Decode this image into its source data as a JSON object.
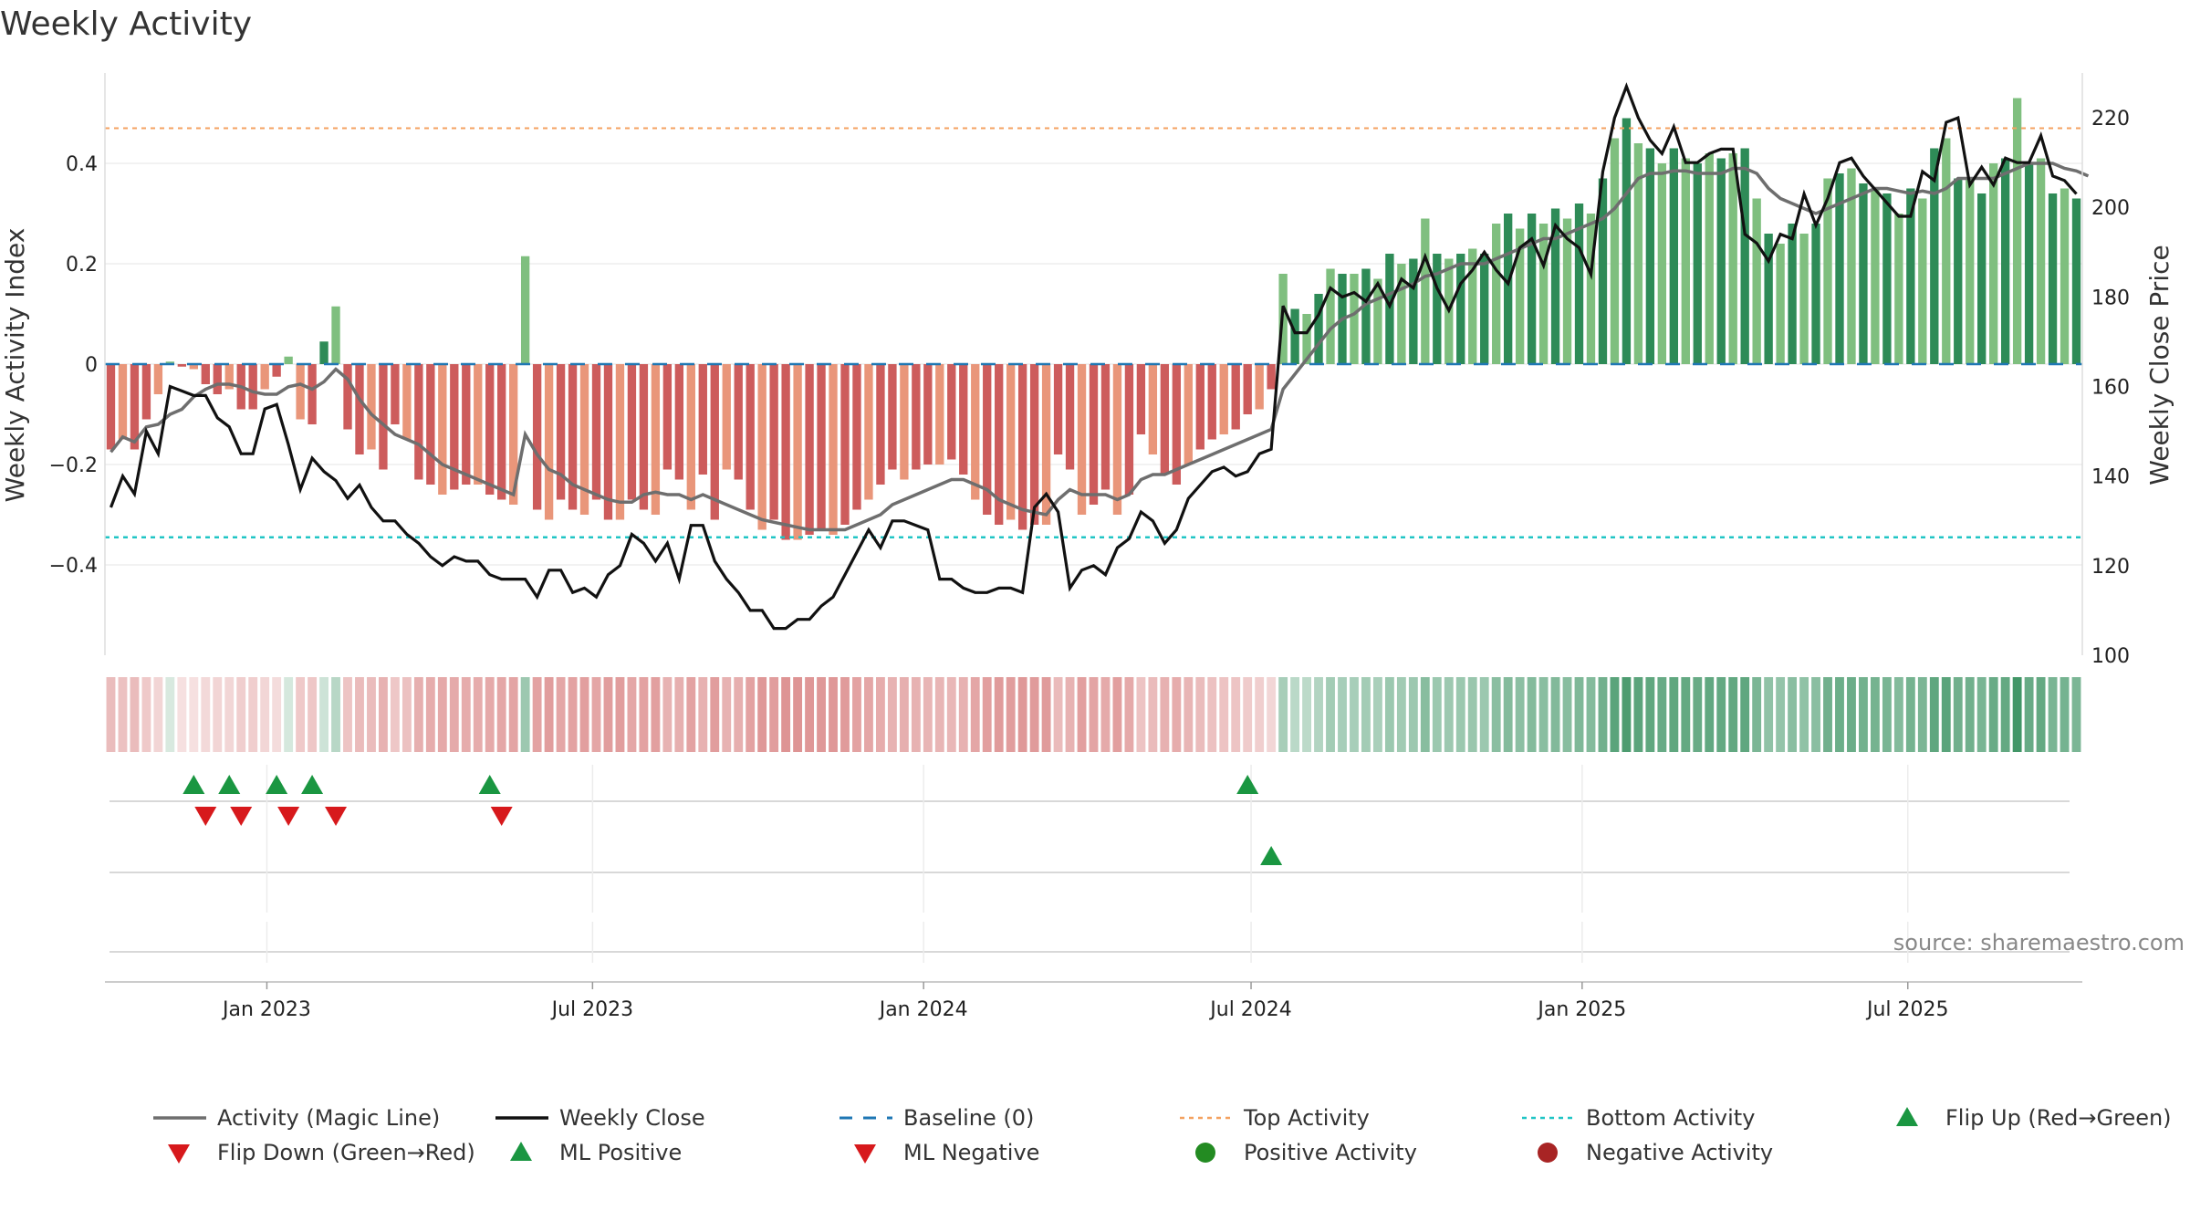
{
  "title": "Weekly Activity",
  "source": "source: sharemaestro.com",
  "colors": {
    "pos_dark": "#2e8b57",
    "pos_light": "#7fbf7f",
    "neg_dark": "#cd5c5c",
    "neg_light": "#e9967a",
    "magic_line": "#6e6e6e",
    "close_line": "#111111",
    "baseline": "#1f77b4",
    "top": "#f4a261",
    "bottom": "#20c5c5",
    "flip_up": "#1a9641",
    "flip_down": "#d7191c",
    "neg_marker": "#a82424",
    "pos_marker": "#238b22"
  },
  "legend": [
    {
      "label": "Activity (Magic Line)",
      "kind": "line",
      "color": "#6e6e6e"
    },
    {
      "label": "Weekly Close",
      "kind": "line",
      "color": "#111111"
    },
    {
      "label": "Baseline (0)",
      "kind": "dash",
      "color": "#1f77b4"
    },
    {
      "label": "Top Activity",
      "kind": "dot-line",
      "color": "#f4a261"
    },
    {
      "label": "Bottom Activity",
      "kind": "dot-line",
      "color": "#20c5c5"
    },
    {
      "label": "Flip Up (Red→Green)",
      "kind": "tri-up",
      "color": "#1a9641"
    },
    {
      "label": "Flip Down (Green→Red)",
      "kind": "tri-down",
      "color": "#d7191c"
    },
    {
      "label": "ML Positive",
      "kind": "tri-up",
      "color": "#1a9641"
    },
    {
      "label": "ML Negative",
      "kind": "tri-down",
      "color": "#d7191c"
    },
    {
      "label": "Positive Activity",
      "kind": "circle",
      "color": "#238b22"
    },
    {
      "label": "Negative Activity",
      "kind": "circle",
      "color": "#a82424"
    }
  ],
  "chart_data": {
    "type": "bar",
    "title": "Weekly Activity",
    "ylabel": "Weekly Activity Index",
    "y2label": "Weekly Close Price",
    "ylim": [
      -0.58,
      0.58
    ],
    "y2lim": [
      100,
      230
    ],
    "yticks": [
      {
        "v": 0.4,
        "label": "0.4"
      },
      {
        "v": 0.2,
        "label": "0.2"
      },
      {
        "v": 0,
        "label": "0"
      },
      {
        "v": -0.2,
        "label": "−0.2"
      },
      {
        "v": -0.4,
        "label": "−0.4"
      }
    ],
    "y2ticks": [
      {
        "v": 220,
        "label": "220"
      },
      {
        "v": 200,
        "label": "200"
      },
      {
        "v": 180,
        "label": "180"
      },
      {
        "v": 160,
        "label": "160"
      },
      {
        "v": 140,
        "label": "140"
      },
      {
        "v": 120,
        "label": "120"
      },
      {
        "v": 100,
        "label": "100"
      }
    ],
    "xticks": [
      {
        "label": "Jan 2023",
        "date": "2023-01-01"
      },
      {
        "label": "Jul 2023",
        "date": "2023-07-01"
      },
      {
        "label": "Jan 2024",
        "date": "2024-01-01"
      },
      {
        "label": "Jul 2024",
        "date": "2024-07-01"
      },
      {
        "label": "Jan 2025",
        "date": "2025-01-01"
      },
      {
        "label": "Jul 2025",
        "date": "2025-07-01"
      }
    ],
    "x_start": "2022-10-03",
    "x_end": "2025-10-06",
    "top_activity": 0.47,
    "bottom_activity": -0.345,
    "activity": [
      -0.17,
      -0.15,
      -0.17,
      -0.11,
      -0.06,
      0.005,
      -0.005,
      -0.01,
      -0.04,
      -0.06,
      -0.05,
      -0.09,
      -0.09,
      -0.05,
      -0.025,
      0.015,
      -0.11,
      -0.12,
      0.045,
      0.115,
      -0.13,
      -0.18,
      -0.17,
      -0.21,
      -0.12,
      -0.15,
      -0.23,
      -0.24,
      -0.26,
      -0.25,
      -0.24,
      -0.24,
      -0.26,
      -0.27,
      -0.28,
      0.215,
      -0.29,
      -0.31,
      -0.27,
      -0.29,
      -0.3,
      -0.27,
      -0.31,
      -0.31,
      -0.27,
      -0.29,
      -0.3,
      -0.21,
      -0.23,
      -0.29,
      -0.22,
      -0.31,
      -0.21,
      -0.23,
      -0.29,
      -0.33,
      -0.31,
      -0.35,
      -0.35,
      -0.34,
      -0.33,
      -0.34,
      -0.32,
      -0.29,
      -0.27,
      -0.24,
      -0.21,
      -0.23,
      -0.21,
      -0.2,
      -0.2,
      -0.19,
      -0.22,
      -0.27,
      -0.3,
      -0.32,
      -0.31,
      -0.33,
      -0.32,
      -0.32,
      -0.18,
      -0.21,
      -0.3,
      -0.28,
      -0.25,
      -0.3,
      -0.26,
      -0.14,
      -0.18,
      -0.22,
      -0.24,
      -0.2,
      -0.17,
      -0.15,
      -0.14,
      -0.13,
      -0.1,
      -0.09,
      -0.05,
      0.18,
      0.11,
      0.1,
      0.14,
      0.19,
      0.18,
      0.18,
      0.19,
      0.17,
      0.22,
      0.2,
      0.21,
      0.29,
      0.22,
      0.21,
      0.22,
      0.23,
      0.22,
      0.28,
      0.3,
      0.27,
      0.3,
      0.28,
      0.31,
      0.29,
      0.32,
      0.3,
      0.37,
      0.45,
      0.49,
      0.44,
      0.43,
      0.4,
      0.43,
      0.41,
      0.4,
      0.42,
      0.41,
      0.42,
      0.43,
      0.33,
      0.26,
      0.24,
      0.28,
      0.26,
      0.28,
      0.37,
      0.38,
      0.39,
      0.36,
      0.35,
      0.34,
      0.3,
      0.35,
      0.33,
      0.43,
      0.45,
      0.37,
      0.37,
      0.34,
      0.4,
      0.41,
      0.53,
      0.4,
      0.41,
      0.34,
      0.35,
      0.33
    ],
    "magic_line": [
      -0.175,
      -0.145,
      -0.155,
      -0.125,
      -0.12,
      -0.1,
      -0.09,
      -0.065,
      -0.05,
      -0.04,
      -0.04,
      -0.045,
      -0.055,
      -0.06,
      -0.06,
      -0.045,
      -0.04,
      -0.05,
      -0.035,
      -0.01,
      -0.03,
      -0.07,
      -0.1,
      -0.12,
      -0.14,
      -0.15,
      -0.16,
      -0.18,
      -0.2,
      -0.21,
      -0.22,
      -0.23,
      -0.24,
      -0.25,
      -0.26,
      -0.14,
      -0.18,
      -0.21,
      -0.22,
      -0.24,
      -0.25,
      -0.26,
      -0.27,
      -0.275,
      -0.275,
      -0.26,
      -0.255,
      -0.26,
      -0.26,
      -0.27,
      -0.26,
      -0.27,
      -0.28,
      -0.29,
      -0.3,
      -0.31,
      -0.315,
      -0.32,
      -0.325,
      -0.33,
      -0.33,
      -0.33,
      -0.33,
      -0.32,
      -0.31,
      -0.3,
      -0.28,
      -0.27,
      -0.26,
      -0.25,
      -0.24,
      -0.23,
      -0.23,
      -0.24,
      -0.25,
      -0.27,
      -0.28,
      -0.29,
      -0.295,
      -0.3,
      -0.27,
      -0.25,
      -0.26,
      -0.26,
      -0.26,
      -0.27,
      -0.26,
      -0.23,
      -0.22,
      -0.22,
      -0.21,
      -0.2,
      -0.19,
      -0.18,
      -0.17,
      -0.16,
      -0.15,
      -0.14,
      -0.13,
      -0.05,
      -0.02,
      0.01,
      0.04,
      0.07,
      0.09,
      0.1,
      0.12,
      0.13,
      0.14,
      0.15,
      0.16,
      0.175,
      0.18,
      0.19,
      0.2,
      0.2,
      0.2,
      0.21,
      0.22,
      0.23,
      0.24,
      0.25,
      0.25,
      0.26,
      0.27,
      0.28,
      0.29,
      0.31,
      0.34,
      0.37,
      0.38,
      0.38,
      0.385,
      0.385,
      0.38,
      0.38,
      0.38,
      0.39,
      0.39,
      0.38,
      0.35,
      0.33,
      0.32,
      0.31,
      0.3,
      0.31,
      0.32,
      0.33,
      0.34,
      0.35,
      0.35,
      0.345,
      0.34,
      0.345,
      0.34,
      0.35,
      0.37,
      0.37,
      0.37,
      0.37,
      0.38,
      0.39,
      0.4,
      0.4,
      0.4,
      0.39,
      0.385,
      0.375
    ],
    "weekly_close": [
      133,
      140,
      136,
      150,
      145,
      160,
      159,
      158,
      158,
      153,
      151,
      145,
      145,
      155,
      156,
      147,
      137,
      144,
      141,
      139,
      135,
      138,
      133,
      130,
      130,
      127,
      125,
      122,
      120,
      122,
      121,
      121,
      118,
      117,
      117,
      117,
      113,
      119,
      119,
      114,
      115,
      113,
      118,
      120,
      127,
      125,
      121,
      125,
      117,
      129,
      129,
      121,
      117,
      114,
      110,
      110,
      106,
      106,
      108,
      108,
      111,
      113,
      118,
      123,
      128,
      124,
      130,
      130,
      129,
      128,
      117,
      117,
      115,
      114,
      114,
      115,
      115,
      114,
      133,
      136,
      132,
      115,
      119,
      120,
      118,
      124,
      126,
      132,
      130,
      125,
      128,
      135,
      138,
      141,
      142,
      140,
      141,
      145,
      146,
      178,
      172,
      172,
      176,
      182,
      180,
      181,
      179,
      183,
      178,
      184,
      182,
      189,
      182,
      177,
      183,
      186,
      190,
      186,
      183,
      191,
      193,
      187,
      196,
      193,
      191,
      185,
      208,
      220,
      227,
      220,
      215,
      212,
      218,
      210,
      210,
      212,
      213,
      213,
      194,
      192,
      188,
      194,
      193,
      203,
      196,
      202,
      210,
      211,
      207,
      204,
      201,
      198,
      198,
      208,
      206,
      219,
      220,
      205,
      209,
      205,
      211,
      210,
      210,
      216,
      207,
      206,
      203
    ],
    "strip_flips": [
      {
        "week": 7,
        "dir": "up"
      },
      {
        "week": 8,
        "dir": "down"
      },
      {
        "week": 10,
        "dir": "up"
      },
      {
        "week": 11,
        "dir": "down"
      },
      {
        "week": 14,
        "dir": "up"
      },
      {
        "week": 15,
        "dir": "down"
      },
      {
        "week": 17,
        "dir": "up"
      },
      {
        "week": 19,
        "dir": "down"
      },
      {
        "week": 32,
        "dir": "up"
      },
      {
        "week": 33,
        "dir": "down"
      },
      {
        "week": 96,
        "dir": "up"
      }
    ],
    "ml_flips": [
      {
        "week": 98,
        "dir": "up"
      }
    ]
  }
}
